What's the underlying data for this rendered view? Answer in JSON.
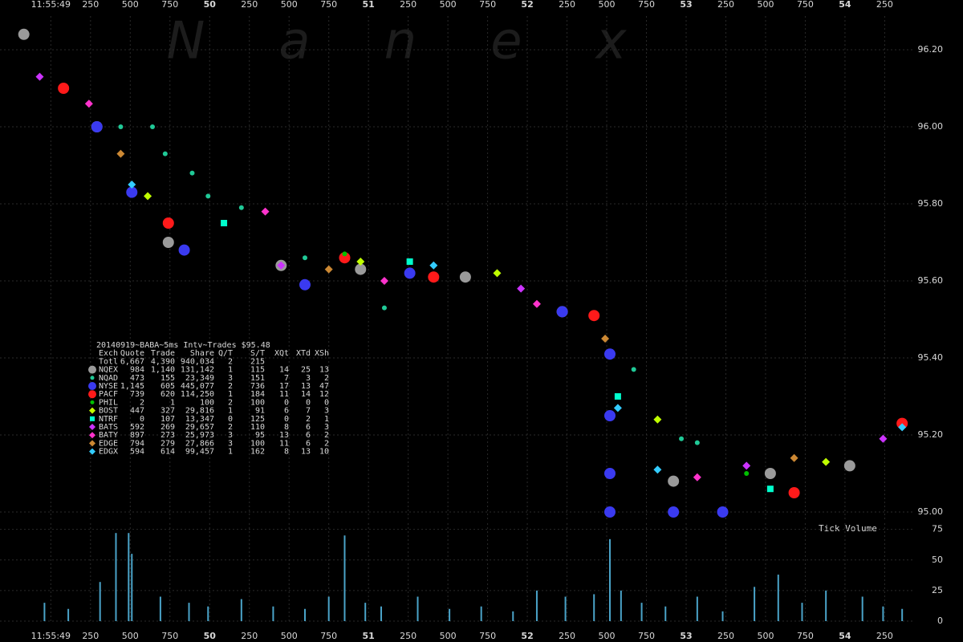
{
  "chart_data": [
    {
      "type": "scatter",
      "watermark": "Nanex",
      "xlim": [
        48.68,
        54.44
      ],
      "xticks": [
        {
          "value": 49,
          "label": "11:55:49"
        },
        {
          "value": 49.25,
          "label": "250"
        },
        {
          "value": 49.5,
          "label": "500"
        },
        {
          "value": 49.75,
          "label": "750"
        },
        {
          "value": 50,
          "label": "50"
        },
        {
          "value": 50.25,
          "label": "250"
        },
        {
          "value": 50.5,
          "label": "500"
        },
        {
          "value": 50.75,
          "label": "750"
        },
        {
          "value": 51,
          "label": "51"
        },
        {
          "value": 51.25,
          "label": "250"
        },
        {
          "value": 51.5,
          "label": "500"
        },
        {
          "value": 51.75,
          "label": "750"
        },
        {
          "value": 52,
          "label": "52"
        },
        {
          "value": 52.25,
          "label": "250"
        },
        {
          "value": 52.5,
          "label": "500"
        },
        {
          "value": 52.75,
          "label": "750"
        },
        {
          "value": 53,
          "label": "53"
        },
        {
          "value": 53.25,
          "label": "250"
        },
        {
          "value": 53.5,
          "label": "500"
        },
        {
          "value": 53.75,
          "label": "750"
        },
        {
          "value": 54,
          "label": "54"
        },
        {
          "value": 54.25,
          "label": "250"
        }
      ],
      "ylim": [
        94.975,
        96.2875
      ],
      "yticks": [
        {
          "value": 95,
          "label": "95.00"
        },
        {
          "value": 95.2,
          "label": "95.20"
        },
        {
          "value": 95.4,
          "label": "95.40"
        },
        {
          "value": 95.6,
          "label": "95.60"
        },
        {
          "value": 95.8,
          "label": "95.80"
        },
        {
          "value": 96,
          "label": "96.00"
        },
        {
          "value": 96.2,
          "label": "96.20"
        }
      ],
      "grid": true,
      "series": [
        {
          "name": "NQEX",
          "color": "#9a9a9a",
          "marker": "circle",
          "x": [
            48.83,
            49.29,
            49.74,
            50.45,
            50.95,
            51.61,
            52.22,
            52.92,
            53.53,
            54.03
          ],
          "values": [
            96.24,
            96.0,
            95.7,
            95.64,
            95.63,
            95.61,
            95.52,
            95.08,
            95.1,
            95.12
          ]
        },
        {
          "name": "NQAD",
          "color": "#20c997",
          "marker": "dot",
          "x": [
            49.44,
            49.64,
            49.72,
            49.89,
            49.99,
            50.2,
            50.6,
            51.1,
            52.67,
            52.97,
            53.07
          ],
          "values": [
            96.0,
            96.0,
            95.93,
            95.88,
            95.82,
            95.79,
            95.66,
            95.53,
            95.37,
            95.19,
            95.18
          ]
        },
        {
          "name": "NYSE",
          "color": "#3a3af0",
          "marker": "circle",
          "x": [
            49.29,
            49.51,
            49.84,
            50.6,
            51.26,
            52.22,
            52.52,
            52.52,
            52.52,
            52.52,
            52.92,
            53.23
          ],
          "values": [
            96.0,
            95.83,
            95.68,
            95.59,
            95.62,
            95.52,
            95.41,
            95.25,
            95.1,
            95.0,
            95.0,
            95.0
          ]
        },
        {
          "name": "PACF",
          "color": "#ff1a1a",
          "marker": "circle",
          "x": [
            49.08,
            49.74,
            50.85,
            51.41,
            52.42,
            53.68,
            54.36
          ],
          "values": [
            96.1,
            95.75,
            95.66,
            95.61,
            95.51,
            95.05,
            95.23
          ]
        },
        {
          "name": "PHIL",
          "color": "#00c000",
          "marker": "dot",
          "x": [
            50.85,
            53.38
          ],
          "values": [
            95.67,
            95.1
          ]
        },
        {
          "name": "BOST",
          "color": "#c0ff00",
          "marker": "diamond",
          "x": [
            49.61,
            50.95,
            51.81,
            52.82,
            53.88
          ],
          "values": [
            95.82,
            95.65,
            95.62,
            95.24,
            95.13
          ]
        },
        {
          "name": "NTRF",
          "color": "#00ffcc",
          "marker": "square",
          "x": [
            50.09,
            51.26,
            52.57,
            53.53
          ],
          "values": [
            95.75,
            95.65,
            95.3,
            95.06
          ]
        },
        {
          "name": "BATS",
          "color": "#cc33ff",
          "marker": "diamond",
          "x": [
            48.93,
            50.45,
            51.96,
            53.38,
            54.24
          ],
          "values": [
            96.13,
            95.64,
            95.58,
            95.12,
            95.19
          ]
        },
        {
          "name": "BATY",
          "color": "#ff33cc",
          "marker": "diamond",
          "x": [
            49.24,
            50.35,
            51.1,
            52.06,
            53.07
          ],
          "values": [
            96.06,
            95.78,
            95.6,
            95.54,
            95.09
          ]
        },
        {
          "name": "EDGE",
          "color": "#cc8833",
          "marker": "diamond",
          "x": [
            49.44,
            50.75,
            52.49,
            53.68
          ],
          "values": [
            95.93,
            95.63,
            95.45,
            95.14
          ]
        },
        {
          "name": "EDGX",
          "color": "#33ccff",
          "marker": "diamond",
          "x": [
            49.51,
            51.41,
            52.57,
            52.82,
            54.36
          ],
          "values": [
            95.85,
            95.64,
            95.27,
            95.11,
            95.22
          ]
        }
      ],
      "stats_table": {
        "title": "20140919~BABA~5ms Intv~Trades $95.48",
        "columns": [
          "Exch",
          "Quote",
          "Trade",
          "Share",
          "Q/T",
          "S/T",
          "XQt",
          "XTd",
          "XSh"
        ],
        "total": {
          "label": "Totl",
          "cells": [
            "6,667",
            "4,390",
            "940,034",
            "2",
            "215"
          ]
        },
        "rows": [
          [
            "984",
            "1,140",
            "131,142",
            "1",
            "115",
            "14",
            "25",
            "13"
          ],
          [
            "473",
            "155",
            "23,349",
            "3",
            "151",
            "7",
            "3",
            "2"
          ],
          [
            "1,145",
            "605",
            "445,077",
            "2",
            "736",
            "17",
            "13",
            "47"
          ],
          [
            "739",
            "620",
            "114,250",
            "1",
            "184",
            "11",
            "14",
            "12"
          ],
          [
            "2",
            "1",
            "100",
            "2",
            "100",
            "0",
            "0",
            "0"
          ],
          [
            "447",
            "327",
            "29,816",
            "1",
            "91",
            "6",
            "7",
            "3"
          ],
          [
            "0",
            "107",
            "13,347",
            "0",
            "125",
            "0",
            "2",
            "1"
          ],
          [
            "592",
            "269",
            "29,657",
            "2",
            "110",
            "8",
            "6",
            "3"
          ],
          [
            "897",
            "273",
            "25,973",
            "3",
            "95",
            "13",
            "6",
            "2"
          ],
          [
            "794",
            "279",
            "27,866",
            "3",
            "100",
            "11",
            "6",
            "2"
          ],
          [
            "594",
            "614",
            "99,457",
            "1",
            "162",
            "8",
            "13",
            "10"
          ]
        ]
      }
    },
    {
      "type": "bar",
      "title": "Tick Volume",
      "color": "#4aa3c8",
      "xlim": [
        48.68,
        54.44
      ],
      "xticks": [
        {
          "value": 49,
          "label": "11:55:49"
        },
        {
          "value": 49.25,
          "label": "250"
        },
        {
          "value": 49.5,
          "label": "500"
        },
        {
          "value": 49.75,
          "label": "750"
        },
        {
          "value": 50,
          "label": "50"
        },
        {
          "value": 50.25,
          "label": "250"
        },
        {
          "value": 50.5,
          "label": "500"
        },
        {
          "value": 50.75,
          "label": "750"
        },
        {
          "value": 51,
          "label": "51"
        },
        {
          "value": 51.25,
          "label": "250"
        },
        {
          "value": 51.5,
          "label": "500"
        },
        {
          "value": 51.75,
          "label": "750"
        },
        {
          "value": 52,
          "label": "52"
        },
        {
          "value": 52.25,
          "label": "250"
        },
        {
          "value": 52.5,
          "label": "500"
        },
        {
          "value": 52.75,
          "label": "750"
        },
        {
          "value": 53,
          "label": "53"
        },
        {
          "value": 53.25,
          "label": "250"
        },
        {
          "value": 53.5,
          "label": "500"
        },
        {
          "value": 53.75,
          "label": "750"
        },
        {
          "value": 54,
          "label": "54"
        },
        {
          "value": 54.25,
          "label": "250"
        }
      ],
      "ylim": [
        0,
        80
      ],
      "yticks": [
        0,
        25,
        50,
        75
      ],
      "grid": true,
      "x": [
        48.96,
        49.11,
        49.31,
        49.41,
        49.49,
        49.51,
        49.69,
        49.87,
        49.99,
        50.2,
        50.4,
        50.6,
        50.75,
        50.85,
        50.98,
        51.08,
        51.31,
        51.51,
        51.71,
        51.91,
        52.06,
        52.24,
        52.42,
        52.52,
        52.59,
        52.72,
        52.87,
        53.07,
        53.23,
        53.43,
        53.58,
        53.73,
        53.88,
        54.11,
        54.24,
        54.36
      ],
      "values": [
        15,
        10,
        32,
        72,
        72,
        55,
        20,
        15,
        12,
        18,
        12,
        10,
        20,
        70,
        15,
        12,
        20,
        10,
        12,
        8,
        25,
        20,
        22,
        67,
        25,
        15,
        12,
        20,
        8,
        28,
        38,
        15,
        25,
        20,
        12,
        10
      ]
    }
  ]
}
